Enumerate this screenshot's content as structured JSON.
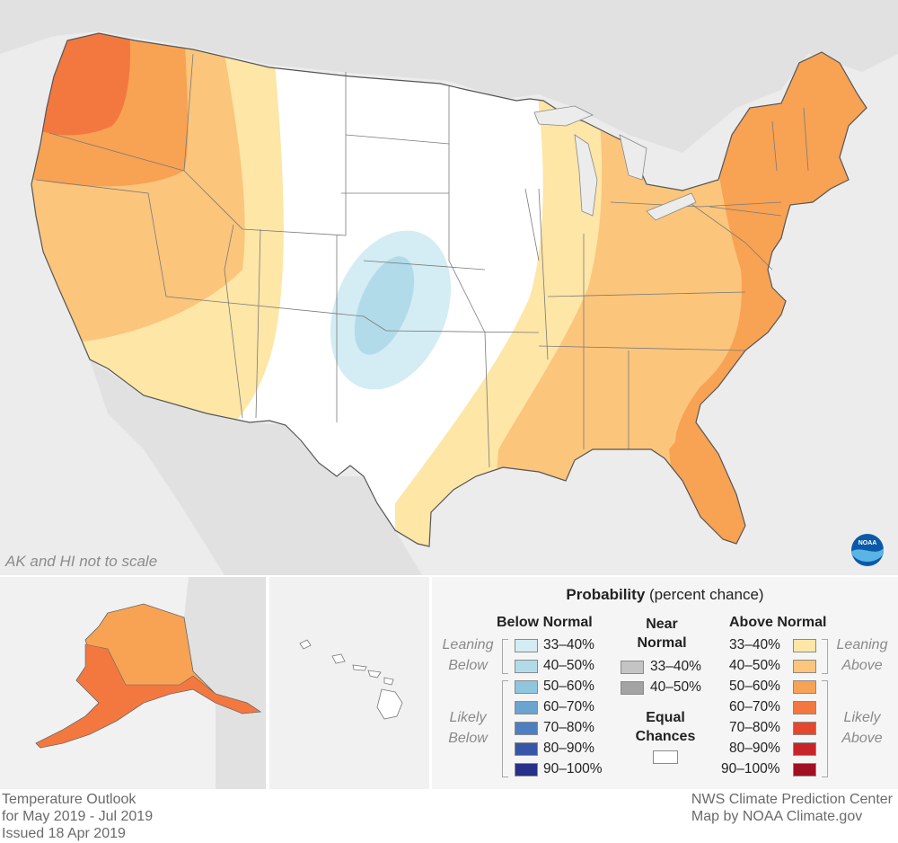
{
  "map": {
    "scale_note": "AK and HI not to scale",
    "logo_text": "NOAA"
  },
  "legend": {
    "title_bold": "Probability",
    "title_rest": " (percent chance)",
    "below_header": "Below Normal",
    "near_header_line1": "Near",
    "near_header_line2": "Normal",
    "above_header": "Above Normal",
    "leaning_below_1": "Leaning",
    "leaning_below_2": "Below",
    "likely_below_1": "Likely",
    "likely_below_2": "Below",
    "leaning_above_1": "Leaning",
    "leaning_above_2": "Above",
    "likely_above_1": "Likely",
    "likely_above_2": "Above",
    "equal_chances_1": "Equal",
    "equal_chances_2": "Chances",
    "below": [
      {
        "label": "33–40%",
        "color": "#d4ecf4"
      },
      {
        "label": "40–50%",
        "color": "#b2dbe9"
      },
      {
        "label": "50–60%",
        "color": "#8ec6dd"
      },
      {
        "label": "60–70%",
        "color": "#6ba4cf"
      },
      {
        "label": "70–80%",
        "color": "#4d7fc0"
      },
      {
        "label": "80–90%",
        "color": "#3656a8"
      },
      {
        "label": "90–100%",
        "color": "#27318a"
      }
    ],
    "near": [
      {
        "label": "33–40%",
        "color": "#c4c4c4"
      },
      {
        "label": "40–50%",
        "color": "#a3a3a3"
      }
    ],
    "equal_color": "#ffffff",
    "above": [
      {
        "label": "33–40%",
        "color": "#fde6a6"
      },
      {
        "label": "40–50%",
        "color": "#fbc57c"
      },
      {
        "label": "50–60%",
        "color": "#f8a254"
      },
      {
        "label": "60–70%",
        "color": "#f27840"
      },
      {
        "label": "70–80%",
        "color": "#e4472d"
      },
      {
        "label": "80–90%",
        "color": "#c8252a"
      },
      {
        "label": "90–100%",
        "color": "#a10f22"
      }
    ]
  },
  "footer": {
    "left_1": "Temperature Outlook",
    "left_2": "for May 2019 - Jul 2019",
    "left_3": "Issued 18 Apr 2019",
    "right_1": "NWS Climate Prediction Center",
    "right_2": "Map by NOAA Climate.gov"
  }
}
